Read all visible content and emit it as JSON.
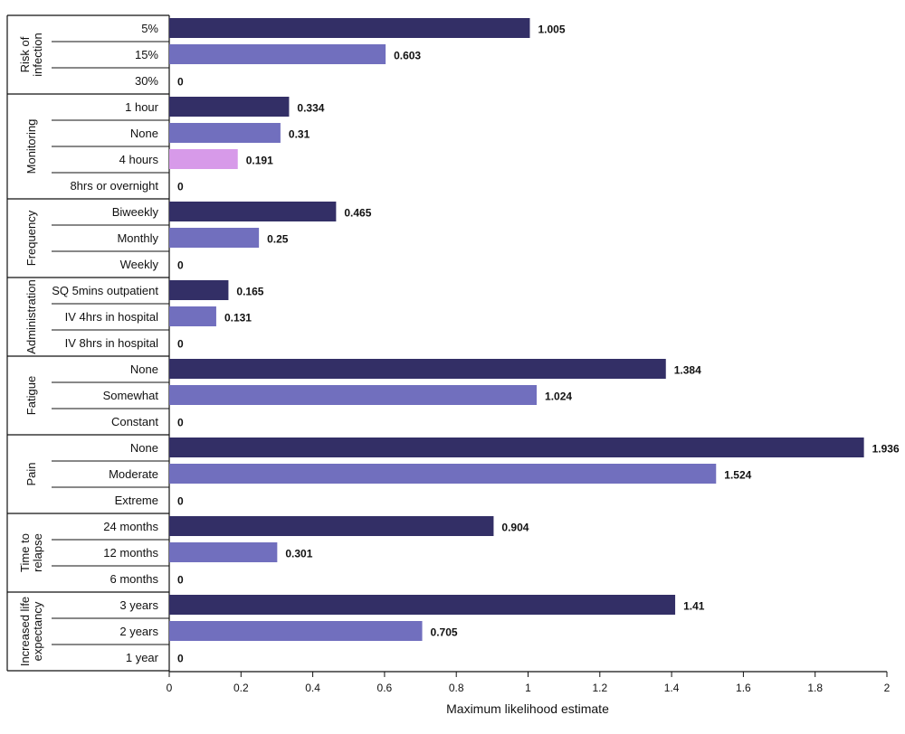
{
  "chart_data": {
    "type": "bar",
    "orientation": "horizontal",
    "xlabel": "Maximum likelihood estimate",
    "xlim": [
      0,
      2
    ],
    "xticks": [
      0,
      0.2,
      0.4,
      0.6,
      0.8,
      1,
      1.2,
      1.4,
      1.6,
      1.8,
      2
    ],
    "xtick_labels": [
      "0",
      "0.2",
      "0.4",
      "0.6",
      "0.8",
      "1",
      "1.2",
      "1.4",
      "1.6",
      "1.8",
      "2"
    ],
    "grid": false,
    "colors": {
      "first_level": "#332f66",
      "second_level": "#716fbe",
      "highlight": "#d79ae9",
      "lines": "#111111"
    },
    "groups": [
      {
        "label": "Risk of infection",
        "label_lines": [
          "Risk of",
          "infection"
        ],
        "levels": [
          {
            "label": "5%",
            "value": 1.005,
            "value_label": "1.005"
          },
          {
            "label": "15%",
            "value": 0.603,
            "value_label": "0.603"
          },
          {
            "label": "30%",
            "value": 0,
            "value_label": "0"
          }
        ]
      },
      {
        "label": "Monitoring",
        "label_lines": [
          "Monitoring"
        ],
        "levels": [
          {
            "label": "1 hour",
            "value": 0.334,
            "value_label": "0.334"
          },
          {
            "label": "None",
            "value": 0.31,
            "value_label": "0.31"
          },
          {
            "label": "4 hours",
            "value": 0.191,
            "value_label": "0.191",
            "highlight": true
          },
          {
            "label": "8hrs or overnight",
            "value": 0,
            "value_label": "0"
          }
        ]
      },
      {
        "label": "Frequency",
        "label_lines": [
          "Frequency"
        ],
        "levels": [
          {
            "label": "Biweekly",
            "value": 0.465,
            "value_label": "0.465"
          },
          {
            "label": "Monthly",
            "value": 0.25,
            "value_label": "0.25"
          },
          {
            "label": "Weekly",
            "value": 0,
            "value_label": "0"
          }
        ]
      },
      {
        "label": "Administration",
        "label_lines": [
          "Administration"
        ],
        "levels": [
          {
            "label": "SQ 5mins outpatient",
            "value": 0.165,
            "value_label": "0.165"
          },
          {
            "label": "IV 4hrs in hospital",
            "value": 0.131,
            "value_label": "0.131"
          },
          {
            "label": "IV 8hrs in hospital",
            "value": 0,
            "value_label": "0"
          }
        ]
      },
      {
        "label": "Fatigue",
        "label_lines": [
          "Fatigue"
        ],
        "levels": [
          {
            "label": "None",
            "value": 1.384,
            "value_label": "1.384"
          },
          {
            "label": "Somewhat",
            "value": 1.024,
            "value_label": "1.024"
          },
          {
            "label": "Constant",
            "value": 0,
            "value_label": "0"
          }
        ]
      },
      {
        "label": "Pain",
        "label_lines": [
          "Pain"
        ],
        "levels": [
          {
            "label": "None",
            "value": 1.936,
            "value_label": "1.936"
          },
          {
            "label": "Moderate",
            "value": 1.524,
            "value_label": "1.524"
          },
          {
            "label": "Extreme",
            "value": 0,
            "value_label": "0"
          }
        ]
      },
      {
        "label": "Time to relapse",
        "label_lines": [
          "Time to",
          "relapse"
        ],
        "levels": [
          {
            "label": "24 months",
            "value": 0.904,
            "value_label": "0.904"
          },
          {
            "label": "12 months",
            "value": 0.301,
            "value_label": "0.301"
          },
          {
            "label": "6 months",
            "value": 0,
            "value_label": "0"
          }
        ]
      },
      {
        "label": "Increased life expectancy",
        "label_lines": [
          "Increased life",
          "expectancy"
        ],
        "levels": [
          {
            "label": "3 years",
            "value": 1.41,
            "value_label": "1.41"
          },
          {
            "label": "2 years",
            "value": 0.705,
            "value_label": "0.705"
          },
          {
            "label": "1 year",
            "value": 0,
            "value_label": "0"
          }
        ]
      }
    ]
  }
}
